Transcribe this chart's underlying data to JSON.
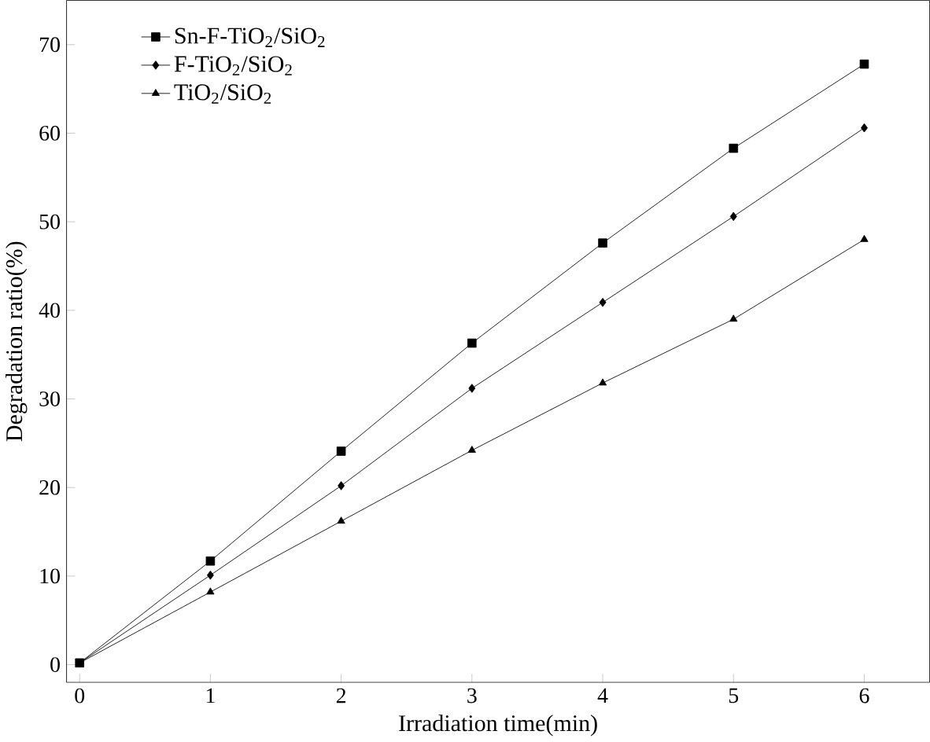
{
  "chart_data": {
    "type": "line",
    "xlabel": "Irradiation time(min)",
    "ylabel": "Degradation ratio(%)",
    "x": [
      0,
      1,
      2,
      3,
      4,
      5,
      6
    ],
    "series": [
      {
        "name": "Sn-F-TiO$_{2}$/SiO$_{2}$",
        "color": "#000000",
        "marker": "square",
        "values": [
          0.2,
          11.7,
          24.1,
          36.3,
          47.6,
          58.3,
          67.8
        ]
      },
      {
        "name": "F-TiO$_{2}$/SiO$_{2}$",
        "color": "#000000",
        "marker": "diamond",
        "values": [
          0.2,
          10.1,
          20.2,
          31.2,
          40.9,
          50.6,
          60.6
        ]
      },
      {
        "name": "TiO$_{2}$/SiO$_{2}$",
        "color": "#000000",
        "marker": "triangle",
        "values": [
          0.2,
          8.2,
          16.2,
          24.2,
          31.8,
          39.0,
          48.0
        ]
      }
    ],
    "xlim": [
      -0.1,
      6.5
    ],
    "ylim": [
      -2,
      75
    ],
    "xticks": [
      0,
      1,
      2,
      3,
      4,
      5,
      6
    ],
    "yticks": [
      0,
      10,
      20,
      30,
      40,
      50,
      60,
      70
    ],
    "grid": false,
    "legend": "top left",
    "line_style": "solid"
  }
}
